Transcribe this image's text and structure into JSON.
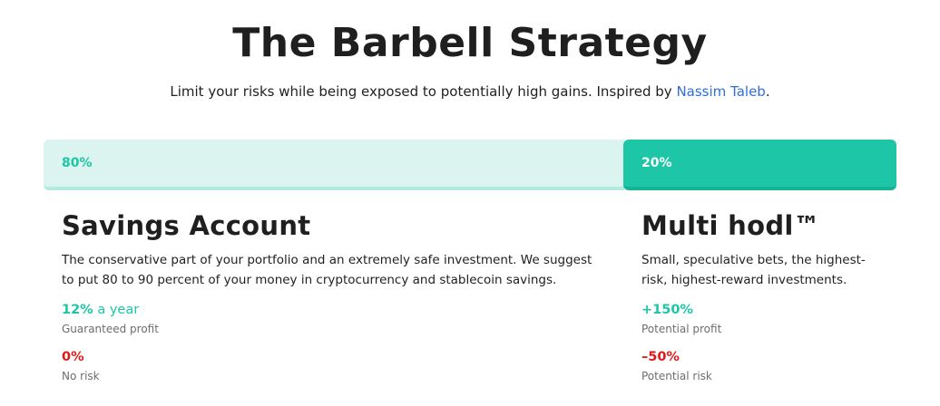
{
  "header": {
    "title": "The Barbell Strategy",
    "subtitle_text": "Limit your risks while being exposed to potentially high gains. Inspired by ",
    "subtitle_link": "Nassim Taleb",
    "subtitle_end": "."
  },
  "allocation_bar": {
    "left_label": "80%",
    "left_fraction": 0.8,
    "right_label": "20%",
    "right_fraction": 0.2,
    "colors": {
      "left_bg": "#dbf4ef",
      "right_bg": "#1cc6a7"
    }
  },
  "savings": {
    "heading": "Savings Account",
    "description": "The conservative part of your portfolio and an extremely safe investment. We suggest to put 80 to 90 percent of your money in cryptocurrency and stablecoin savings.",
    "profit_value": "12%",
    "profit_suffix": " a year",
    "profit_label": "Guaranteed profit",
    "risk_value": "0%",
    "risk_label": "No risk"
  },
  "multi_hodl": {
    "heading": "Multi hodl™",
    "description": "Small, speculative bets, the highest-risk, highest-reward investments.",
    "profit_value": "+150%",
    "profit_label": "Potential profit",
    "risk_value": "–50%",
    "risk_label": "Potential risk"
  },
  "colors": {
    "accent_green": "#1cc6a7",
    "risk_red": "#e01919",
    "link_blue": "#2f6fd6"
  }
}
